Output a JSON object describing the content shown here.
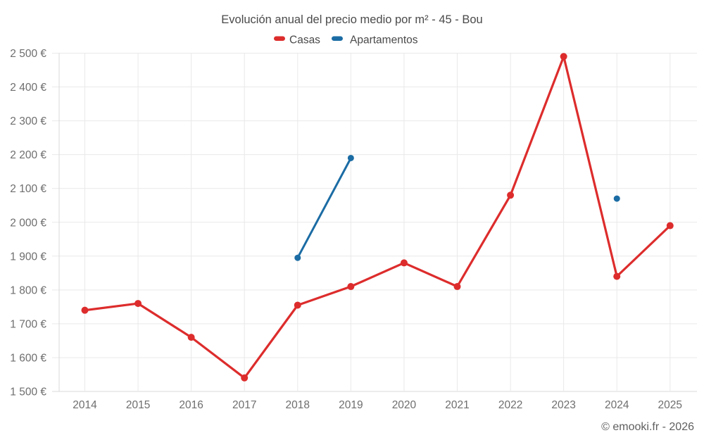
{
  "header": {
    "title": "Evolución anual del precio medio por m² - 45 - Bou"
  },
  "legend": {
    "items": [
      {
        "label": "Casas",
        "color": "#dd2c2c"
      },
      {
        "label": "Apartamentos",
        "color": "#1b6ca4"
      }
    ]
  },
  "footer": {
    "text": "© emooki.fr - 2026"
  },
  "chart_data": {
    "type": "line",
    "title": "Evolución anual del precio medio por m² - 45 - Bou",
    "categories": [
      2014,
      2015,
      2016,
      2017,
      2018,
      2019,
      2020,
      2021,
      2022,
      2023,
      2024,
      2025
    ],
    "series": [
      {
        "name": "Casas",
        "color": "#dd2c2c",
        "marker_radius": 5,
        "line_width": 3.2,
        "values": [
          1740,
          1760,
          1660,
          1540,
          1755,
          1810,
          1880,
          1810,
          2080,
          2490,
          1840,
          1990
        ]
      },
      {
        "name": "Apartamentos",
        "color": "#1b6ca4",
        "marker_radius": 4.5,
        "line_width": 3,
        "values": [
          null,
          null,
          null,
          null,
          1895,
          2190,
          null,
          null,
          null,
          null,
          2070,
          null
        ]
      }
    ],
    "xlabel": "",
    "ylabel": "",
    "ylim": [
      1500,
      2500
    ],
    "ytick_step": 100,
    "ytick_labels": [
      "1 500 €",
      "1 600 €",
      "1 700 €",
      "1 800 €",
      "1 900 €",
      "2 000 €",
      "2 100 €",
      "2 200 €",
      "2 300 €",
      "2 400 €",
      "2 500 €"
    ],
    "xtick_labels": [
      "2014",
      "2015",
      "2016",
      "2017",
      "2018",
      "2019",
      "2020",
      "2021",
      "2022",
      "2023",
      "2024",
      "2025"
    ],
    "grid": true,
    "legend_position": "top",
    "currency": "€",
    "colors": {
      "gridline": "#e9e9e9",
      "axis_line": "#d9d9d9",
      "tick_text": "#6e6e6e",
      "title_text": "#4a4a4a"
    }
  }
}
